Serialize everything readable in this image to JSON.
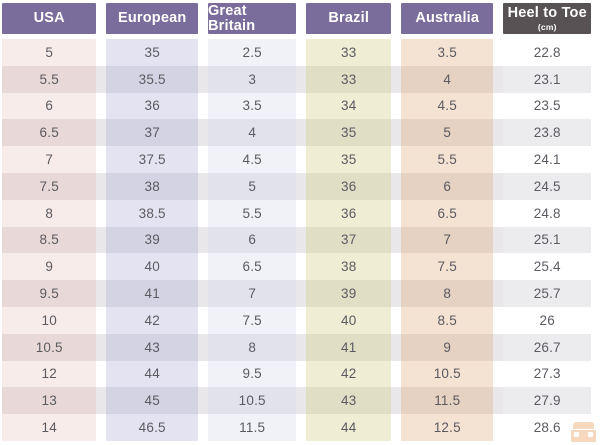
{
  "chart_data": {
    "type": "table",
    "columns": [
      {
        "label": "USA"
      },
      {
        "label": "European"
      },
      {
        "label": "Great Britain"
      },
      {
        "label": "Brazil"
      },
      {
        "label": "Australia"
      },
      {
        "label": "Heel to Toe",
        "sublabel": "(cm)"
      }
    ],
    "rows": [
      [
        "5",
        "35",
        "2.5",
        "33",
        "3.5",
        "22.8"
      ],
      [
        "5.5",
        "35.5",
        "3",
        "33",
        "4",
        "23.1"
      ],
      [
        "6",
        "36",
        "3.5",
        "34",
        "4.5",
        "23.5"
      ],
      [
        "6.5",
        "37",
        "4",
        "35",
        "5",
        "23.8"
      ],
      [
        "7",
        "37.5",
        "4.5",
        "35",
        "5.5",
        "24.1"
      ],
      [
        "7.5",
        "38",
        "5",
        "36",
        "6",
        "24.5"
      ],
      [
        "8",
        "38.5",
        "5.5",
        "36",
        "6.5",
        "24.8"
      ],
      [
        "8.5",
        "39",
        "6",
        "37",
        "7",
        "25.1"
      ],
      [
        "9",
        "40",
        "6.5",
        "38",
        "7.5",
        "25.4"
      ],
      [
        "9.5",
        "41",
        "7",
        "39",
        "8",
        "25.7"
      ],
      [
        "10",
        "42",
        "7.5",
        "40",
        "8.5",
        "26"
      ],
      [
        "10.5",
        "43",
        "8",
        "41",
        "9",
        "26.7"
      ],
      [
        "12",
        "44",
        "9.5",
        "42",
        "10.5",
        "27.3"
      ],
      [
        "13",
        "45",
        "10.5",
        "43",
        "11.5",
        "27.9"
      ],
      [
        "14",
        "46.5",
        "11.5",
        "44",
        "12.5",
        "28.6"
      ]
    ],
    "legend_position": "none",
    "grid": false
  },
  "styles": {
    "header_bg": "#7a6d9b",
    "header_bg_last": "#585254",
    "header_text": "#ffffff",
    "cell_text": "#5c5a61",
    "even_row_band": "#e9e7e9",
    "column_light": [
      "#f8ecea",
      "#e4e3f1",
      "#f1f2f7",
      "#efeed4",
      "#f4e2d3",
      "#ffffff"
    ],
    "column_dark": [
      "#e8d9d8",
      "#d4d3e4",
      "#e2e3ea",
      "#e0dfc6",
      "#e5d2c3",
      "#ecebee"
    ],
    "watermark_color": "#e9a05e"
  }
}
